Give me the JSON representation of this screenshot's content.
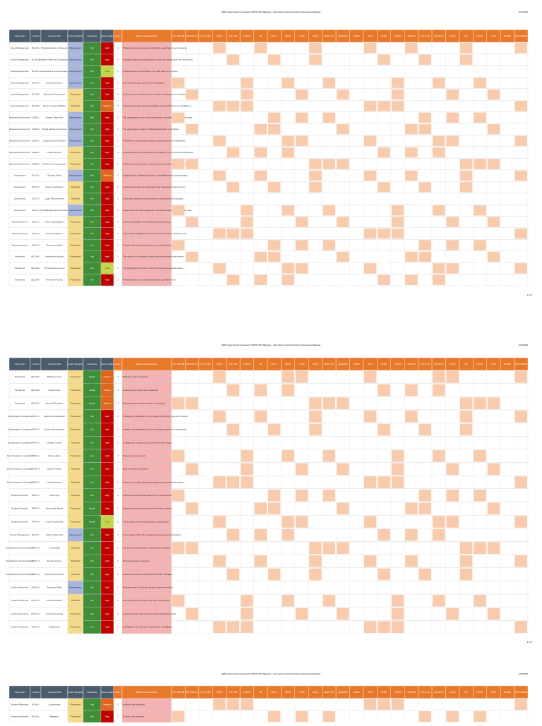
{
  "header": {
    "title": "ERM Cybersecurity Framework (NIST CSF) Mapping - Information Security Program Framework Mapping",
    "date": "12/2/2020"
  },
  "columns": [
    "Cyber Plan",
    "Control",
    "Control & Title",
    "Control Weighting",
    "Ownership",
    "Testing Status",
    "Score",
    "Recommended Actions",
    "NIST 800-53",
    "NIST 800-171",
    "ISO 27001",
    "COBIT",
    "PCI DSS",
    "HIPAA",
    "CIS",
    "SOC 2",
    "GDPR",
    "CCPA",
    "FFIEC",
    "NERC CIP",
    "FedRAMP",
    "CMMC",
    "SOX",
    "GLBA",
    "NYDFS",
    "HITRUST",
    "CSA CCM",
    "ISA 62443",
    "COSO",
    "ITIL",
    "AICPA",
    "CJIS",
    "DFARS",
    "NIST 800-82"
  ],
  "pages": [
    {
      "footer": "1 of 3",
      "rows": [
        [
          "Asset Management",
          "ID.AM-1",
          "Physical Devices & Systems",
          "Management",
          "Yes",
          "High",
          "4",
          "Physical devices and systems within the organization are inventoried"
        ],
        [
          "Asset Management",
          "ID.AM-2",
          "Software Platforms & Applications",
          "Management",
          "Yes",
          "High",
          "4",
          "Software platforms and applications within the organization are inventoried"
        ],
        [
          "Asset Management",
          "ID.AM-3",
          "Data Flows & Communication",
          "Management",
          "Yes",
          "Low",
          "3",
          "Organizational communication and data flows are mapped"
        ],
        [
          "Asset Management",
          "ID.AM-4",
          "External Systems",
          "Management",
          "Yes",
          "High",
          "3",
          "External information systems are catalogued"
        ],
        [
          "Asset Management",
          "ID.AM-5",
          "Resource Prioritization",
          "Procedural",
          "Yes",
          "High",
          "3",
          "Resources are prioritized based on their classification and criticality"
        ],
        [
          "Asset Management",
          "ID.AM-6",
          "Roles & Responsibilities",
          "Technical",
          "Yes",
          "Medium",
          "3",
          "Cybersecurity roles and responsibilities for the workforce are established"
        ],
        [
          "Business Environment",
          "ID.BE-1",
          "Supply Chain Role",
          "Management",
          "Yes",
          "High",
          "3",
          "The organization's role in the supply chain is identified and communicated"
        ],
        [
          "Business Environment",
          "ID.BE-2",
          "Critical Infrastructure Place",
          "Management",
          "Yes",
          "High",
          "3",
          "The organization's place in critical infrastructure is identified"
        ],
        [
          "Business Environment",
          "ID.BE-3",
          "Organizational Priorities",
          "Management",
          "Yes",
          "High",
          "3",
          "Priorities for organizational mission and objectives are established"
        ],
        [
          "Business Environment",
          "ID.BE-4",
          "Dependencies",
          "Procedural",
          "Yes",
          "High",
          "3",
          "Dependencies and critical functions for delivery of services are established"
        ],
        [
          "Business Environment",
          "ID.BE-5",
          "Resilience Requirements",
          "Procedural",
          "Yes",
          "High",
          "3",
          "Resilience requirements to support delivery of critical services are established"
        ],
        [
          "Governance",
          "ID.GV-1",
          "Security Policy",
          "Management",
          "Yes",
          "Medium",
          "3",
          "Organizational cybersecurity policy is established and communicated"
        ],
        [
          "Governance",
          "ID.GV-2",
          "Roles Coordination",
          "Technical",
          "Yes",
          "High",
          "3",
          "Cybersecurity roles are coordinated and aligned with internal roles"
        ],
        [
          "Governance",
          "ID.GV-3",
          "Legal Requirements",
          "Technical",
          "Yes",
          "High",
          "3",
          "Legal and regulatory requirements are understood and managed"
        ],
        [
          "Governance",
          "ID.GV-4",
          "Risk Management Processes",
          "Management",
          "Yes",
          "High",
          "3",
          "Governance and risk management processes address cybersecurity risks"
        ],
        [
          "Risk Assessment",
          "ID.RA-1",
          "Asset Vulnerabilities",
          "Procedural",
          "Yes",
          "High",
          "3",
          "Asset vulnerabilities are identified and documented"
        ],
        [
          "Risk Assessment",
          "ID.RA-2",
          "Threat Intelligence",
          "Procedural",
          "Yes",
          "High",
          "3",
          "Cyber threat intelligence is received from information sharing forums"
        ],
        [
          "Risk Assessment",
          "ID.RA-3",
          "Threats Identified",
          "Procedural",
          "Yes",
          "High",
          "3",
          "Threats, both internal and external, are identified and documented"
        ],
        [
          "Monitoring",
          "DE.CM-1",
          "Network Monitoring",
          "Procedural",
          "Yes",
          "High",
          "3",
          "The network is monitored to detect potential cybersecurity events"
        ],
        [
          "Monitoring",
          "DE.CM-2",
          "Physical Environment",
          "Procedural",
          "Yes",
          "Low",
          "2",
          "The physical environment is monitored to detect potential events"
        ],
        [
          "Monitoring",
          "DE.CM-3",
          "Personnel Activity",
          "Procedural",
          "Yes",
          "High",
          "3",
          "Personnel activity is monitored to detect potential events"
        ]
      ]
    },
    {
      "footer": "2 of 3",
      "rows": [
        [
          "Monitoring",
          "DE.CM-4",
          "Malicious Code",
          "Procedural",
          "Partial",
          "Medium",
          "3",
          "Malicious code is detected"
        ],
        [
          "Monitoring",
          "DE.CM-5",
          "Mobile Code",
          "Procedural",
          "Partial",
          "Medium",
          "3",
          "Unauthorized mobile code is detected"
        ],
        [
          "Monitoring",
          "DE.CM-6",
          "External Providers",
          "Procedural",
          "Partial",
          "Medium",
          "3",
          "External service provider activity is monitored"
        ],
        [
          "Configuration Compliance",
          "PR.IP-1",
          "Baseline Configuration",
          "Procedural",
          "Yes",
          "High",
          "3",
          "A baseline configuration of information technology systems is created"
        ],
        [
          "Configuration Compliance",
          "PR.IP-2",
          "System Development",
          "Procedural",
          "Yes",
          "High",
          "3",
          "A system development life cycle to manage systems is implemented"
        ],
        [
          "Configuration Compliance",
          "PR.IP-3",
          "Change Control",
          "Technical",
          "Yes",
          "High",
          "3",
          "Configuration change control processes are in place"
        ],
        [
          "Data Protection & Handling",
          "PR.DS-1",
          "Data-at-Rest",
          "Procedural",
          "Yes",
          "High",
          "3",
          "Data-at-rest is protected"
        ],
        [
          "Data Protection & Handling",
          "PR.DS-2",
          "Data-in-Transit",
          "Technical",
          "Yes",
          "High",
          "3",
          "Data-in-transit is protected"
        ],
        [
          "Data Protection & Handling",
          "PR.DS-3",
          "Asset Disposal",
          "Technical",
          "Yes",
          "High",
          "3",
          "Assets are formally managed throughout removal and disposition"
        ],
        [
          "Endpoint Security",
          "PR.PT-1",
          "Audit Logs",
          "Technical",
          "Yes",
          "High",
          "3",
          "Audit and log records are determined, documented and reviewed"
        ],
        [
          "Endpoint Security",
          "PR.PT-2",
          "Removable Media",
          "Procedural",
          "Partial",
          "High",
          "3",
          "Removable media is protected and its use restricted"
        ],
        [
          "Endpoint Security",
          "PR.PT-3",
          "Least Functionality",
          "Procedural",
          "Partial",
          "Low",
          "2",
          "The principle of least functionality is incorporated"
        ],
        [
          "Vendor Management",
          "ID.SC-1",
          "Supply Chain Risk",
          "Management",
          "Yes",
          "High",
          "3",
          "Cyber supply chain risk management processes are identified"
        ],
        [
          "Identification & Authentication",
          "PR.AC-1",
          "Credentials",
          "Technical",
          "Yes",
          "High",
          "3",
          "Identities and credentials are issued and managed"
        ],
        [
          "Identification & Authentication",
          "PR.AC-3",
          "Remote Access",
          "Technical",
          "Yes",
          "High",
          "3",
          "Remote access is managed"
        ],
        [
          "Identification & Authentication",
          "PR.AC-4",
          "Access Permissions",
          "Technical",
          "Yes",
          "High",
          "3",
          "Access permissions and authorizations are managed"
        ],
        [
          "Incident Response",
          "RS.RP-1",
          "Response Plan",
          "Management",
          "Yes",
          "High",
          "3",
          "Response plan is executed during or after an incident"
        ],
        [
          "Incident Response",
          "RS.CO-1",
          "Personnel Roles",
          "Technical",
          "Yes",
          "High",
          "3",
          "Personnel know their roles and order of operations"
        ],
        [
          "Incident Response",
          "RS.CO-2",
          "Incident Reporting",
          "Procedural",
          "Yes",
          "High",
          "3",
          "Incidents are reported consistent with established criteria"
        ],
        [
          "Incident Response",
          "RS.AN-1",
          "Notifications",
          "Procedural",
          "Yes",
          "High",
          "3",
          "Notifications from detection systems are investigated"
        ]
      ]
    },
    {
      "footer": "3 of 3",
      "rows": [
        [
          "Incident Response",
          "RS.MI-1",
          "Containment",
          "Procedural",
          "Yes",
          "Medium",
          "3",
          "Incidents are contained"
        ],
        [
          "Incident Response",
          "RS.MI-2",
          "Mitigation",
          "Procedural",
          "Yes",
          "High",
          "3",
          "Incidents are mitigated"
        ]
      ]
    }
  ]
}
